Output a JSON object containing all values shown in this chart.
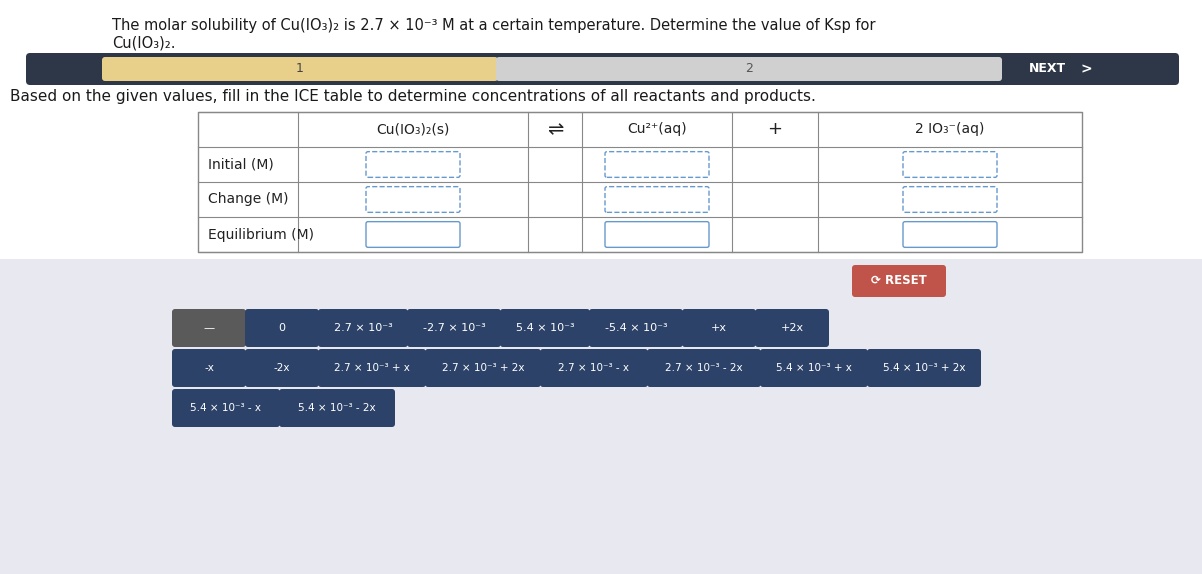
{
  "title_line1": "The molar solubility of Cu(IO₃)₂ is 2.7 × 10⁻³ M at a certain temperature. Determine the value of Ksp for",
  "title_line2": "Cu(IO₃)₂.",
  "instruction": "Based on the given values, fill in the ICE table to determine concentrations of all reactants and products.",
  "nav_bar_bg": "#2d3748",
  "nav_segment1_color": "#e8d08a",
  "nav_segment2_color": "#d0d0d0",
  "nav_text1": "1",
  "nav_text2": "2",
  "nav_next": "NEXT",
  "table_header_col1": "Cu(IO₃)₂(s)",
  "table_header_eq": "⇌",
  "table_header_col2": "Cu²⁺(aq)",
  "table_header_plus": "+",
  "table_header_col3": "2 IO₃⁻(aq)",
  "row_labels": [
    "Initial (M)",
    "Change (M)",
    "Equilibrium (M)"
  ],
  "bottom_bg": "#e8e8f0",
  "reset_bg": "#c0544a",
  "reset_text": "⟳ RESET",
  "dark_btn_color": "#2d4268",
  "gray_btn_color": "#5a5a5a",
  "btn_row1": [
    "—",
    "0",
    "2.7 × 10⁻³",
    "-2.7 × 10⁻³",
    "5.4 × 10⁻³",
    "-5.4 × 10⁻³",
    "+x",
    "+2x"
  ],
  "btn_row1_gray": [
    true,
    false,
    false,
    false,
    false,
    false,
    false,
    false
  ],
  "btn_row2": [
    "-x",
    "-2x",
    "2.7 × 10⁻³ + x",
    "2.7 × 10⁻³ + 2x",
    "2.7 × 10⁻³ - x",
    "2.7 × 10⁻³ - 2x",
    "5.4 × 10⁻³ + x",
    "5.4 × 10⁻³ + 2x"
  ],
  "btn_row3": [
    "5.4 × 10⁻³ - x",
    "5.4 × 10⁻³ - 2x"
  ],
  "bg_color": "#ffffff"
}
